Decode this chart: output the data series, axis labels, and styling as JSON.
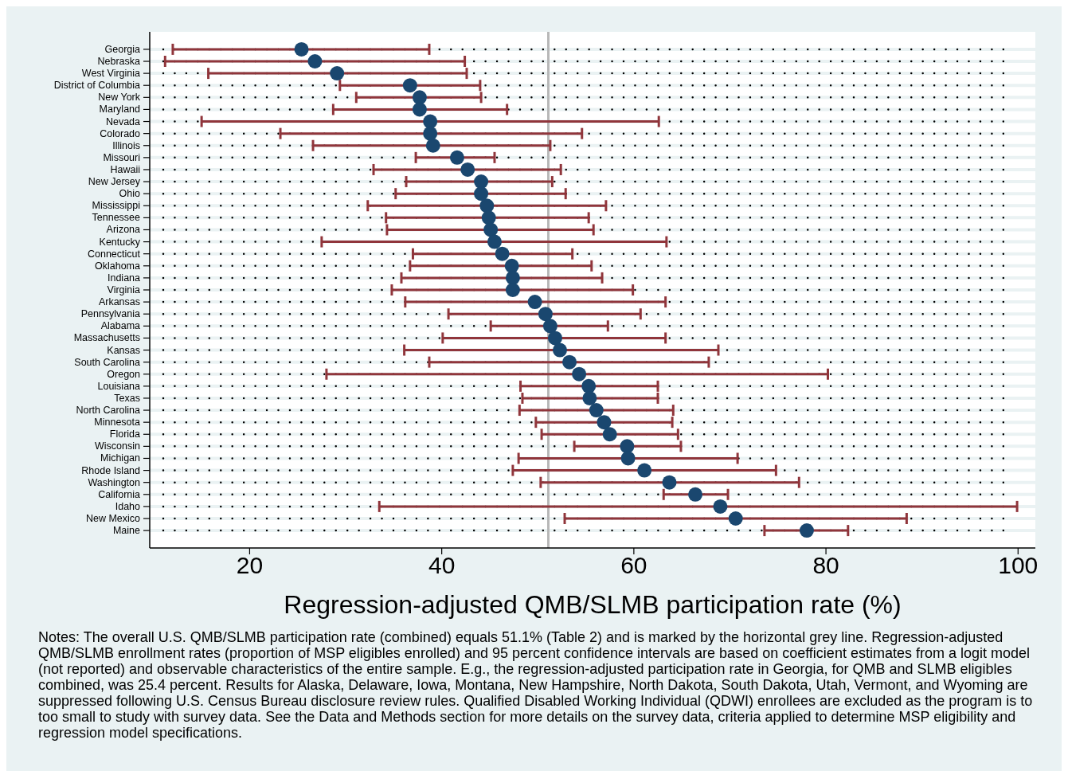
{
  "chart_data": {
    "type": "scatter",
    "orientation": "horizontal",
    "xlabel": "Regression-adjusted QMB/SLMB participation rate (%)",
    "categories": [
      "Georgia",
      "Nebraska",
      "West Virginia",
      "District of Columbia",
      "New York",
      "Maryland",
      "Nevada",
      "Colorado",
      "Illinois",
      "Missouri",
      "Hawaii",
      "New Jersey",
      "Ohio",
      "Mississippi",
      "Tennessee",
      "Arizona",
      "Kentucky",
      "Connecticut",
      "Oklahoma",
      "Indiana",
      "Virginia",
      "Arkansas",
      "Pennsylvania",
      "Alabama",
      "Massachusetts",
      "Kansas",
      "South Carolina",
      "Oregon",
      "Louisiana",
      "Texas",
      "North Carolina",
      "Minnesota",
      "Florida",
      "Wisconsin",
      "Michigan",
      "Rhode Island",
      "Washington",
      "California",
      "Idaho",
      "New Mexico",
      "Maine"
    ],
    "series": [
      {
        "color": "#1a476f",
        "values": [
          25.4,
          26.8,
          29.1,
          36.7,
          37.7,
          37.7,
          38.8,
          38.8,
          39.1,
          41.6,
          42.7,
          44.1,
          44.1,
          44.7,
          44.9,
          45.1,
          45.5,
          46.3,
          47.3,
          47.4,
          47.4,
          49.7,
          50.8,
          51.3,
          51.8,
          52.3,
          53.3,
          54.3,
          55.3,
          55.4,
          56.1,
          56.9,
          57.5,
          59.3,
          59.4,
          61.1,
          63.7,
          66.4,
          69.0,
          70.6,
          78.0
        ],
        "errors": [
          [
            12.0,
            38.7
          ],
          [
            11.2,
            42.4
          ],
          [
            15.7,
            42.6
          ],
          [
            29.4,
            44.0
          ],
          [
            31.1,
            44.1
          ],
          [
            28.7,
            46.8
          ],
          [
            15.0,
            62.6
          ],
          [
            23.2,
            54.6
          ],
          [
            26.6,
            51.3
          ],
          [
            37.3,
            45.5
          ],
          [
            32.9,
            52.4
          ],
          [
            36.3,
            51.5
          ],
          [
            35.2,
            52.9
          ],
          [
            32.3,
            57.1
          ],
          [
            34.2,
            55.3
          ],
          [
            34.3,
            55.8
          ],
          [
            27.5,
            63.4
          ],
          [
            37.0,
            53.6
          ],
          [
            36.7,
            55.6
          ],
          [
            35.8,
            56.7
          ],
          [
            34.8,
            59.9
          ],
          [
            36.2,
            63.3
          ],
          [
            40.7,
            60.7
          ],
          [
            45.1,
            57.3
          ],
          [
            40.1,
            63.3
          ],
          [
            36.1,
            68.8
          ],
          [
            38.7,
            67.8
          ],
          [
            28.0,
            80.2
          ],
          [
            48.2,
            62.5
          ],
          [
            48.4,
            62.5
          ],
          [
            48.1,
            64.1
          ],
          [
            49.8,
            64.0
          ],
          [
            50.4,
            64.6
          ],
          [
            53.8,
            64.9
          ],
          [
            48.0,
            70.8
          ],
          [
            47.4,
            74.8
          ],
          [
            50.3,
            77.2
          ],
          [
            63.1,
            69.8
          ],
          [
            33.5,
            99.9
          ],
          [
            52.8,
            88.4
          ],
          [
            73.6,
            82.3
          ]
        ]
      }
    ],
    "xlim": [
      9.6,
      101.8
    ],
    "xticks": [
      20,
      40,
      60,
      80,
      100
    ],
    "ref_lines": [
      {
        "axis": "x",
        "value": 51.1,
        "color": "#b8b8b8"
      }
    ],
    "grid": "y",
    "marker": "circle",
    "annotations": [
      "Notes: The overall U.S. QMB/SLMB participation rate (combined) equals 51.1% (Table 2) and is marked by the horizontal grey line. Regression-adjusted QMB/SLMB enrollment rates (proportion of MSP eligibles enrolled) and 95 percent confidence intervals are based on coefficient estimates from a logit model (not reported) and observable characteristics of the entire sample. E.g., the regression-adjusted participation rate in Georgia, for QMB and SLMB eligibles combined, was 25.4 percent. Results for Alaska, Delaware, Iowa, Montana, New Hampshire, North Dakota, South Dakota, Utah, Vermont, and Wyoming are suppressed following U.S. Census Bureau disclosure review rules. Qualified Disabled Working Individual (QDWI) enrollees are excluded as the program is to too small to study with survey data. See the Data and Methods section for more details on the survey data, criteria applied to determine MSP eligibility and regression model specifications."
    ]
  }
}
